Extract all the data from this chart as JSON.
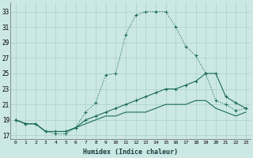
{
  "xlabel": "Humidex (Indice chaleur)",
  "bg_color": "#cce8e4",
  "grid_color": "#aacfca",
  "line_color": "#1a6b5a",
  "x_ticks": [
    0,
    1,
    2,
    3,
    4,
    5,
    6,
    7,
    8,
    9,
    10,
    11,
    12,
    13,
    14,
    15,
    16,
    17,
    18,
    19,
    20,
    21,
    22,
    23
  ],
  "y_ticks": [
    17,
    19,
    21,
    23,
    25,
    27,
    29,
    31,
    33
  ],
  "xlim": [
    -0.5,
    23.5
  ],
  "ylim": [
    16.5,
    34.2
  ],
  "line1_dotted": {
    "x": [
      0,
      1,
      2,
      3,
      4,
      5,
      6,
      7,
      8,
      9,
      10,
      11,
      12,
      13,
      14,
      15,
      16,
      17,
      18,
      19,
      20,
      21,
      22,
      23
    ],
    "y": [
      19,
      18.5,
      18.5,
      17.5,
      17.2,
      17.2,
      18,
      20,
      21.2,
      24.8,
      25,
      30,
      32.5,
      33,
      33,
      33,
      31,
      28.5,
      27.3,
      25,
      21.5,
      21,
      20.2,
      20.5
    ]
  },
  "line2_solid": {
    "x": [
      0,
      1,
      2,
      3,
      4,
      5,
      6,
      7,
      8,
      9,
      10,
      11,
      12,
      13,
      14,
      15,
      16,
      17,
      18,
      19,
      20,
      21,
      22,
      23
    ],
    "y": [
      19,
      18.5,
      18.5,
      17.5,
      17.5,
      17.5,
      18,
      19,
      19.5,
      20,
      20.5,
      21,
      21.5,
      22,
      22.5,
      23,
      23,
      23.5,
      24,
      25,
      25,
      22,
      21.2,
      20.5
    ]
  },
  "line3_solid": {
    "x": [
      0,
      1,
      2,
      3,
      4,
      5,
      6,
      7,
      8,
      9,
      10,
      11,
      12,
      13,
      14,
      15,
      16,
      17,
      18,
      19,
      20,
      21,
      22,
      23
    ],
    "y": [
      19,
      18.5,
      18.5,
      17.5,
      17.5,
      17.5,
      18,
      18.5,
      19,
      19.5,
      19.5,
      20,
      20,
      20,
      20.5,
      21,
      21,
      21,
      21.5,
      21.5,
      20.5,
      20,
      19.5,
      20
    ]
  }
}
